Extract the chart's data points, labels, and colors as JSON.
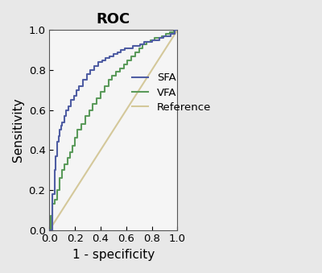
{
  "title": "ROC",
  "xlabel": "1 - specificity",
  "ylabel": "Sensitivity",
  "xlim": [
    0.0,
    1.0
  ],
  "ylim": [
    0.0,
    1.0
  ],
  "xticks": [
    0.0,
    0.2,
    0.4,
    0.6,
    0.8,
    1.0
  ],
  "yticks": [
    0.0,
    0.2,
    0.4,
    0.6,
    0.8,
    1.0
  ],
  "sfa_color": "#4F5DA3",
  "vfa_color": "#5A9A5A",
  "ref_color": "#D4C89A",
  "legend_labels": [
    "SFA",
    "VFA",
    "Reference"
  ],
  "background_color": "#f0f0f0",
  "axes_background": "#f5f5f5",
  "sfa_x": [
    0.0,
    0.02,
    0.02,
    0.04,
    0.04,
    0.05,
    0.05,
    0.06,
    0.06,
    0.07,
    0.07,
    0.08,
    0.08,
    0.09,
    0.09,
    0.1,
    0.1,
    0.12,
    0.12,
    0.13,
    0.13,
    0.15,
    0.15,
    0.17,
    0.17,
    0.19,
    0.19,
    0.21,
    0.21,
    0.23,
    0.23,
    0.26,
    0.26,
    0.29,
    0.29,
    0.32,
    0.32,
    0.35,
    0.35,
    0.38,
    0.38,
    0.41,
    0.41,
    0.44,
    0.44,
    0.47,
    0.47,
    0.5,
    0.5,
    0.53,
    0.53,
    0.56,
    0.56,
    0.59,
    0.59,
    0.62,
    0.62,
    0.65,
    0.65,
    0.68,
    0.68,
    0.71,
    0.71,
    0.74,
    0.74,
    0.77,
    0.77,
    0.8,
    0.8,
    0.83,
    0.83,
    0.86,
    0.86,
    0.89,
    0.89,
    0.92,
    0.92,
    0.95,
    0.95,
    0.98,
    0.98,
    1.0
  ],
  "sfa_y": [
    0.0,
    0.0,
    0.18,
    0.18,
    0.3,
    0.3,
    0.37,
    0.37,
    0.44,
    0.44,
    0.47,
    0.47,
    0.5,
    0.5,
    0.52,
    0.52,
    0.54,
    0.54,
    0.57,
    0.57,
    0.6,
    0.6,
    0.62,
    0.62,
    0.65,
    0.65,
    0.67,
    0.67,
    0.7,
    0.7,
    0.72,
    0.72,
    0.75,
    0.75,
    0.78,
    0.78,
    0.8,
    0.8,
    0.82,
    0.82,
    0.84,
    0.84,
    0.85,
    0.85,
    0.86,
    0.86,
    0.87,
    0.87,
    0.88,
    0.88,
    0.89,
    0.89,
    0.9,
    0.9,
    0.91,
    0.91,
    0.91,
    0.91,
    0.92,
    0.92,
    0.92,
    0.92,
    0.93,
    0.93,
    0.94,
    0.94,
    0.94,
    0.94,
    0.95,
    0.95,
    0.95,
    0.95,
    0.96,
    0.96,
    0.97,
    0.97,
    0.97,
    0.97,
    0.98,
    0.98,
    1.0,
    1.0
  ],
  "vfa_x": [
    0.0,
    0.01,
    0.01,
    0.02,
    0.02,
    0.04,
    0.04,
    0.06,
    0.06,
    0.08,
    0.08,
    0.1,
    0.1,
    0.12,
    0.12,
    0.14,
    0.14,
    0.16,
    0.16,
    0.18,
    0.18,
    0.2,
    0.2,
    0.22,
    0.22,
    0.25,
    0.25,
    0.28,
    0.28,
    0.31,
    0.31,
    0.34,
    0.34,
    0.37,
    0.37,
    0.4,
    0.4,
    0.43,
    0.43,
    0.46,
    0.46,
    0.49,
    0.49,
    0.52,
    0.52,
    0.55,
    0.55,
    0.58,
    0.58,
    0.61,
    0.61,
    0.64,
    0.64,
    0.67,
    0.67,
    0.7,
    0.7,
    0.73,
    0.73,
    0.76,
    0.76,
    0.79,
    0.79,
    0.82,
    0.82,
    0.85,
    0.85,
    0.88,
    0.88,
    0.91,
    0.91,
    0.94,
    0.94,
    0.97,
    0.97,
    1.0
  ],
  "vfa_y": [
    0.0,
    0.0,
    0.07,
    0.07,
    0.13,
    0.13,
    0.15,
    0.15,
    0.2,
    0.2,
    0.26,
    0.26,
    0.3,
    0.3,
    0.33,
    0.33,
    0.36,
    0.36,
    0.39,
    0.39,
    0.42,
    0.42,
    0.46,
    0.46,
    0.5,
    0.5,
    0.53,
    0.53,
    0.57,
    0.57,
    0.6,
    0.6,
    0.63,
    0.63,
    0.66,
    0.66,
    0.69,
    0.69,
    0.72,
    0.72,
    0.75,
    0.75,
    0.77,
    0.77,
    0.79,
    0.79,
    0.81,
    0.81,
    0.83,
    0.83,
    0.85,
    0.85,
    0.87,
    0.87,
    0.89,
    0.89,
    0.91,
    0.91,
    0.93,
    0.93,
    0.94,
    0.94,
    0.95,
    0.95,
    0.96,
    0.96,
    0.96,
    0.96,
    0.97,
    0.97,
    0.98,
    0.98,
    0.99,
    0.99,
    1.0,
    1.0
  ]
}
